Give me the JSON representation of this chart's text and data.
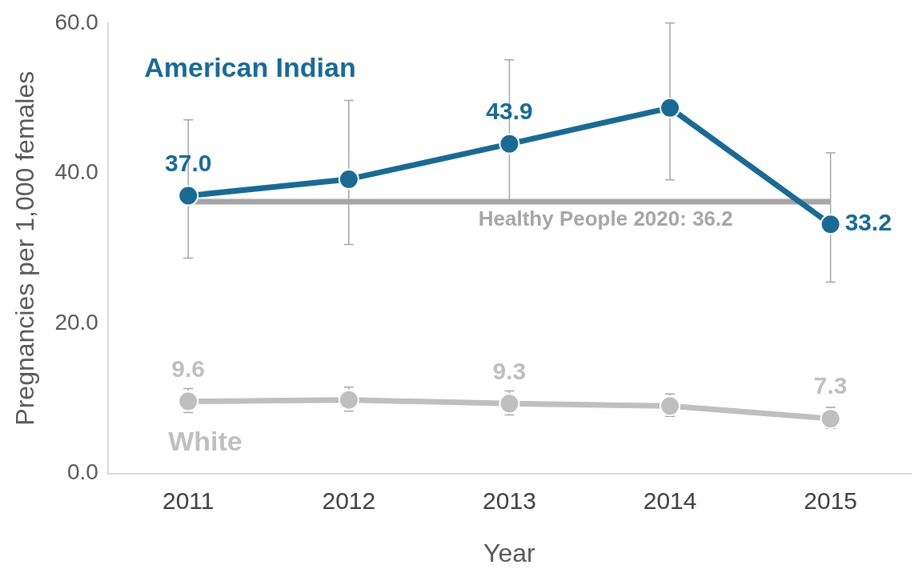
{
  "chart_data": {
    "type": "line",
    "xlabel": "Year",
    "ylabel": "Pregnancies per 1,000 females",
    "categories": [
      "2011",
      "2012",
      "2013",
      "2014",
      "2015"
    ],
    "ylim": [
      0,
      60
    ],
    "yticks": [
      {
        "value": 0,
        "label": "0.0"
      },
      {
        "value": 20,
        "label": "20.0"
      },
      {
        "value": 40,
        "label": "40.0"
      },
      {
        "value": 60,
        "label": "60.0"
      }
    ],
    "grid": false,
    "legend": false,
    "marker": "circle",
    "line_style": "solid",
    "series": [
      {
        "name": "American Indian",
        "color": "#1a6a94",
        "values": [
          37.0,
          39.2,
          43.9,
          48.7,
          33.2
        ],
        "value_labels": [
          "37.0",
          null,
          "43.9",
          null,
          "33.2"
        ],
        "errors": [
          [
            28.7,
            47.1
          ],
          [
            30.5,
            49.7
          ],
          [
            36.4,
            55.1
          ],
          [
            39.1,
            60.0
          ],
          [
            25.5,
            42.7
          ]
        ]
      },
      {
        "name": "White",
        "color": "#bfbfbf",
        "values": [
          9.6,
          9.8,
          9.3,
          9.0,
          7.3
        ],
        "value_labels": [
          "9.6",
          null,
          "9.3",
          null,
          "7.3"
        ],
        "errors": [
          [
            8.1,
            11.3
          ],
          [
            8.3,
            11.5
          ],
          [
            7.8,
            11.0
          ],
          [
            7.6,
            10.6
          ],
          [
            6.0,
            8.8
          ]
        ]
      }
    ],
    "ref_lines": [
      {
        "axis": "y",
        "value": 36.2,
        "label": "Healthy People 2020: 36.2",
        "color": "#a6a6a6"
      }
    ]
  }
}
